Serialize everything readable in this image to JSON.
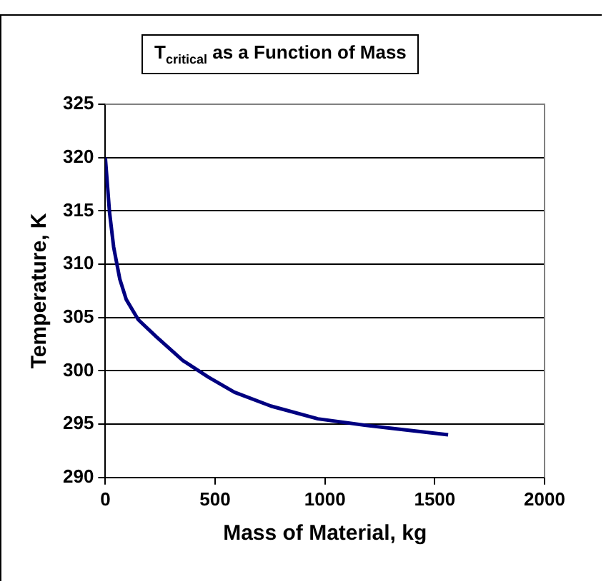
{
  "chart_data": {
    "type": "line",
    "title": "T$_{critical}$ as a Function of Mass",
    "xlabel": "Mass of Material, kg",
    "ylabel": "Temperature, K",
    "x": [
      0,
      19,
      38,
      66,
      95,
      150,
      232,
      351,
      470,
      588,
      754,
      968,
      1181,
      1348,
      1561
    ],
    "series": [
      {
        "color": "#000080",
        "values": [
          320.0,
          314.9,
          311.6,
          308.6,
          306.7,
          304.8,
          303.2,
          301.0,
          299.4,
          298.0,
          296.7,
          295.5,
          294.9,
          294.5,
          294.0
        ]
      }
    ],
    "xlim": [
      0,
      2000
    ],
    "xticks": [
      0,
      500,
      1000,
      1500,
      2000
    ],
    "ylim": [
      290,
      325
    ],
    "yticks": [
      290,
      295,
      300,
      305,
      310,
      315,
      320,
      325
    ],
    "grid": "y",
    "legend": false,
    "marker": "none",
    "line_style": "solid"
  }
}
